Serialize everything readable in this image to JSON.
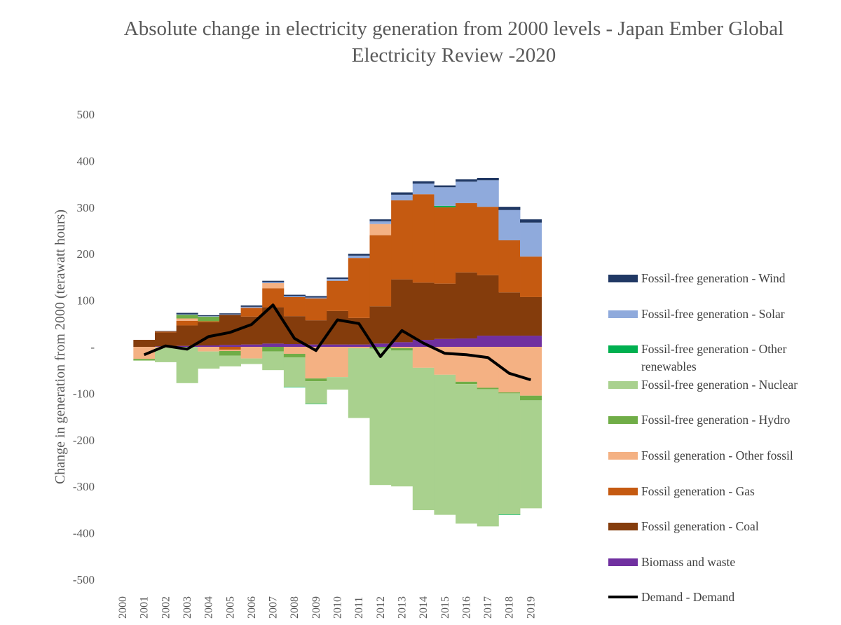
{
  "chart_data": {
    "type": "stacked_area_step",
    "title": "Absolute change in electricity generation from 2000 levels - Japan Ember Global Electricity Review -2020",
    "y_label": "Change in generation from 2000 (terawatt hours)",
    "categories": [
      "2000",
      "2001",
      "2002",
      "2003",
      "2004",
      "2005",
      "2006",
      "2007",
      "2008",
      "2009",
      "2010",
      "2011",
      "2012",
      "2013",
      "2014",
      "2015",
      "2016",
      "2017",
      "2018",
      "2019"
    ],
    "ylim": [
      -500,
      500
    ],
    "yticks": [
      500,
      400,
      300,
      200,
      100,
      {
        "value": 0,
        "label": "-"
      },
      -100,
      -200,
      -300,
      -400,
      -500
    ],
    "series": [
      {
        "name": "Fossil-free generation - Wind",
        "color": "#203864",
        "values": [
          0,
          0,
          1,
          3,
          2,
          2,
          3,
          3,
          3,
          3,
          3,
          4,
          4,
          5,
          5,
          4,
          5,
          5,
          7,
          7
        ]
      },
      {
        "name": "Fossil-free generation - Solar",
        "color": "#8faadc",
        "values": [
          0,
          0,
          0,
          1,
          1,
          1,
          2,
          2,
          2,
          2,
          4,
          5,
          6,
          12,
          23,
          40,
          46,
          57,
          65,
          73
        ]
      },
      {
        "name": "Fossil-free generation - Other renewables",
        "color": "#00b050",
        "values": [
          0,
          0,
          0,
          0,
          0,
          0,
          0,
          0,
          -1,
          -1,
          0,
          0,
          0,
          0,
          0,
          3,
          0,
          0,
          -1,
          0
        ]
      },
      {
        "name": "Fossil-free generation - Nuclear",
        "color": "#a9d18e",
        "values": [
          0,
          -1,
          -31,
          -78,
          -37,
          -23,
          -12,
          -40,
          -63,
          -48,
          -27,
          -150,
          -293,
          -292,
          -306,
          -301,
          -300,
          -295,
          -260,
          -232
        ]
      },
      {
        "name": "Fossil-free generation - Hydro",
        "color": "#70ad47",
        "values": [
          0,
          -3,
          0,
          8,
          10,
          -10,
          0,
          -10,
          -8,
          -6,
          0,
          0,
          -4,
          -5,
          0,
          0,
          -5,
          -3,
          -2,
          -10
        ]
      },
      {
        "name": "Fossil generation - Other fossil",
        "color": "#f4b183",
        "values": [
          0,
          -26,
          -2,
          5,
          -10,
          -3,
          -25,
          11,
          -15,
          -68,
          -65,
          -3,
          24,
          -3,
          -45,
          -60,
          -75,
          -88,
          -98,
          -105
        ]
      },
      {
        "name": "Fossil generation - Gas",
        "color": "#c55a11",
        "values": [
          0,
          0,
          2,
          10,
          2,
          -6,
          19,
          41,
          41,
          47,
          65,
          129,
          153,
          170,
          190,
          164,
          149,
          147,
          112,
          87
        ]
      },
      {
        "name": "Fossil generation - Coal",
        "color": "#843c0c",
        "values": [
          0,
          15,
          30,
          44,
          50,
          65,
          60,
          78,
          60,
          52,
          72,
          57,
          80,
          135,
          123,
          119,
          142,
          130,
          93,
          83
        ]
      },
      {
        "name": "Biomass and waste",
        "color": "#7030a0",
        "values": [
          0,
          0,
          1,
          2,
          3,
          4,
          5,
          7,
          6,
          5,
          5,
          5,
          7,
          10,
          15,
          17,
          18,
          24,
          24,
          24
        ]
      },
      {
        "name": "Demand - Demand",
        "color": "#000000",
        "type": "line",
        "values": [
          null,
          -17,
          2,
          -5,
          22,
          31,
          48,
          90,
          18,
          -8,
          58,
          50,
          -21,
          35,
          8,
          -14,
          -17,
          -23,
          -57,
          -71
        ]
      }
    ]
  }
}
